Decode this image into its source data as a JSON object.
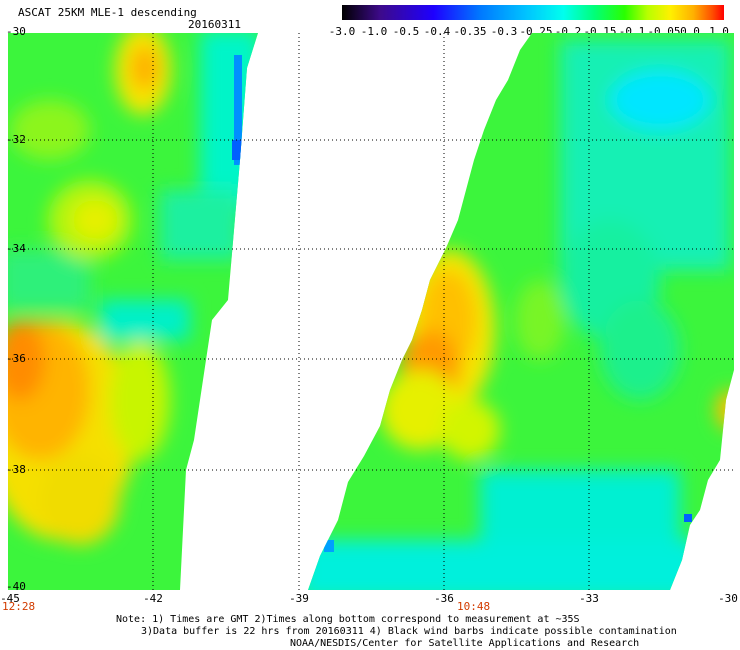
{
  "title": "ASCAT 25KM MLE-1 descending",
  "date": "20160311",
  "colorbar": {
    "labels": [
      "-3.0",
      "-1.0",
      "-0.5",
      "-0.4",
      "-0.35",
      "-0.3",
      "-0.25",
      "-0.2",
      "-0.15",
      "-0.1",
      "-0.05",
      "0.0",
      "1.0"
    ],
    "colors": [
      "#000000",
      "#3d0a8a",
      "#1e00ff",
      "#0077ff",
      "#00c2ff",
      "#00ffee",
      "#00ff7a",
      "#2aff00",
      "#b8ff00",
      "#fff000",
      "#ffb000",
      "#ff4d00",
      "#ff0000"
    ]
  },
  "lat_labels": [
    "-30",
    "-32",
    "-34",
    "-36",
    "-38",
    "-40"
  ],
  "lon_labels": [
    "-45",
    "-42",
    "-39",
    "-36",
    "-33",
    "-30"
  ],
  "pass_times": [
    "12:28",
    "10:48"
  ],
  "notes": [
    "Note: 1) Times are GMT 2)Times along bottom correspond to measurement at ~35S",
    "3)Data buffer is 22 hrs from 20160311 4) Black wind barbs indicate possible contamination",
    "NOAA/NESDIS/Center for Satellite Applications and Research"
  ],
  "map_data": {
    "lon_range": [
      -45,
      -30
    ],
    "lat_range": [
      -40,
      -30
    ],
    "background_color": "#ffffff",
    "grid_color": "#000000",
    "swaths": [
      {
        "name": "west",
        "time": "12:28",
        "dominant_colors": [
          "#33ff33",
          "#00ffcc",
          "#ffd400",
          "#ff9900"
        ]
      },
      {
        "name": "east",
        "time": "10:48",
        "dominant_colors": [
          "#33ff33",
          "#00ffcc",
          "#ffd400",
          "#ff9900"
        ]
      }
    ]
  }
}
